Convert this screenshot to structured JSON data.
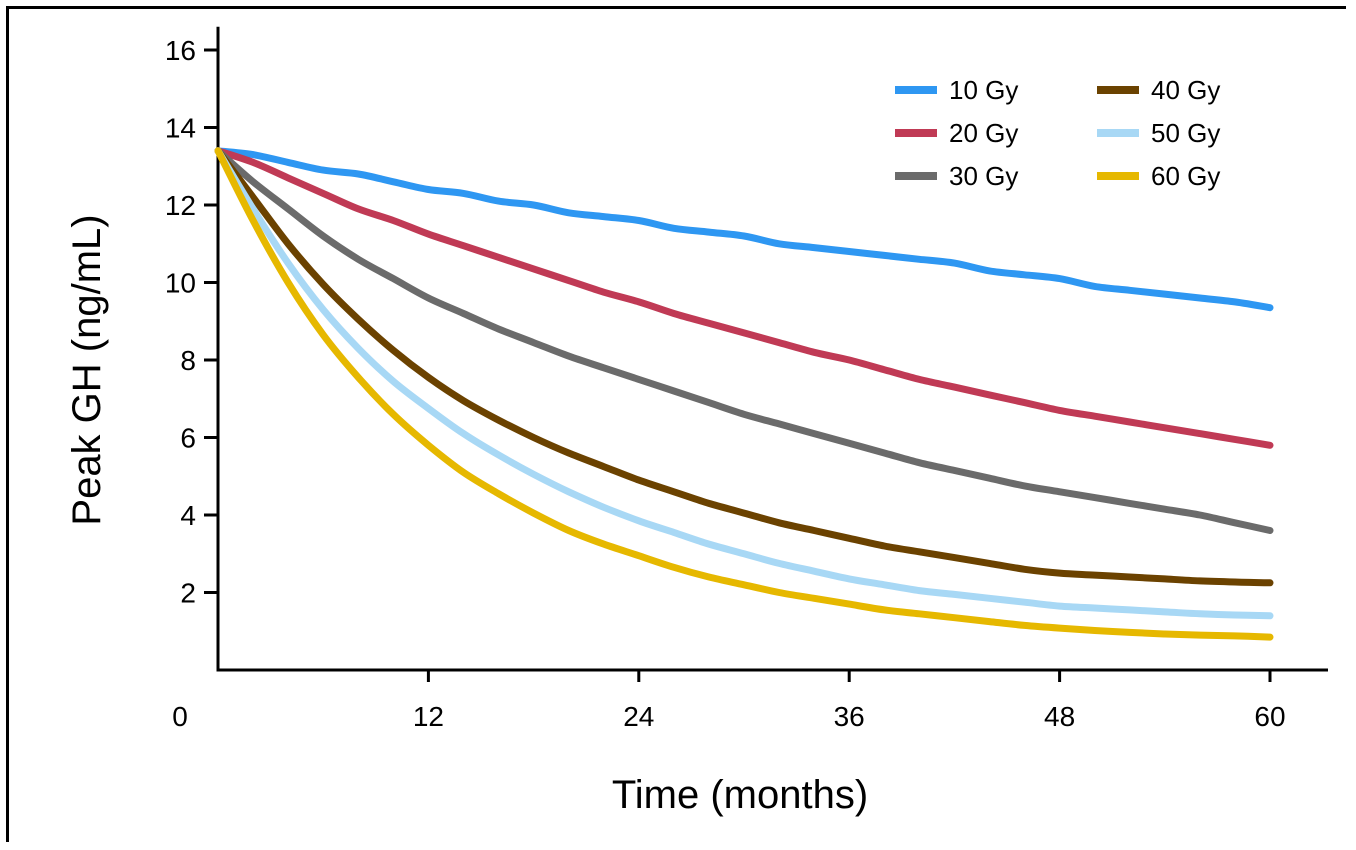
{
  "chart_data": {
    "type": "line",
    "title": "",
    "xlabel": "Time (months)",
    "ylabel": "Peak GH (ng/mL)",
    "xlim": [
      0,
      60
    ],
    "ylim": [
      0,
      16
    ],
    "xticks": [
      0,
      12,
      24,
      36,
      48,
      60
    ],
    "yticks": [
      2,
      4,
      6,
      8,
      10,
      12,
      14,
      16
    ],
    "grid": false,
    "legend_position": "top-right",
    "x": [
      0,
      2,
      4,
      6,
      8,
      10,
      12,
      14,
      16,
      18,
      20,
      22,
      24,
      26,
      28,
      30,
      32,
      34,
      36,
      38,
      40,
      42,
      44,
      46,
      48,
      50,
      52,
      54,
      56,
      58,
      60
    ],
    "series": [
      {
        "name": "10 Gy",
        "color": "#2E97F2",
        "values": [
          13.4,
          13.3,
          13.1,
          12.9,
          12.8,
          12.6,
          12.4,
          12.3,
          12.1,
          12.0,
          11.8,
          11.7,
          11.6,
          11.4,
          11.3,
          11.2,
          11.0,
          10.9,
          10.8,
          10.7,
          10.6,
          10.5,
          10.3,
          10.2,
          10.1,
          9.9,
          9.8,
          9.7,
          9.6,
          9.5,
          9.35
        ]
      },
      {
        "name": "20 Gy",
        "color": "#C03A55",
        "values": [
          13.4,
          13.1,
          12.7,
          12.3,
          11.9,
          11.6,
          11.25,
          10.95,
          10.65,
          10.35,
          10.05,
          9.75,
          9.5,
          9.2,
          8.95,
          8.7,
          8.45,
          8.2,
          8.0,
          7.75,
          7.5,
          7.3,
          7.1,
          6.9,
          6.7,
          6.55,
          6.4,
          6.25,
          6.1,
          5.95,
          5.8
        ]
      },
      {
        "name": "30 Gy",
        "color": "#6B6B6B",
        "values": [
          13.4,
          12.6,
          11.9,
          11.2,
          10.6,
          10.1,
          9.6,
          9.2,
          8.8,
          8.45,
          8.1,
          7.8,
          7.5,
          7.2,
          6.9,
          6.6,
          6.35,
          6.1,
          5.85,
          5.6,
          5.35,
          5.15,
          4.95,
          4.75,
          4.6,
          4.45,
          4.3,
          4.15,
          4.0,
          3.8,
          3.6
        ]
      },
      {
        "name": "40 Gy",
        "color": "#6B4200",
        "values": [
          13.4,
          12.2,
          11.0,
          9.95,
          9.05,
          8.25,
          7.55,
          6.95,
          6.45,
          6.0,
          5.6,
          5.25,
          4.9,
          4.6,
          4.3,
          4.05,
          3.8,
          3.6,
          3.4,
          3.2,
          3.05,
          2.9,
          2.75,
          2.6,
          2.5,
          2.45,
          2.4,
          2.35,
          2.3,
          2.27,
          2.25
        ]
      },
      {
        "name": "50 Gy",
        "color": "#A8D8F5",
        "values": [
          13.4,
          11.9,
          10.5,
          9.3,
          8.3,
          7.45,
          6.75,
          6.1,
          5.55,
          5.05,
          4.6,
          4.2,
          3.85,
          3.55,
          3.25,
          3.0,
          2.75,
          2.55,
          2.35,
          2.2,
          2.05,
          1.95,
          1.85,
          1.75,
          1.65,
          1.6,
          1.55,
          1.5,
          1.45,
          1.42,
          1.4
        ]
      },
      {
        "name": "60 Gy",
        "color": "#E6B800",
        "values": [
          13.4,
          11.6,
          10.0,
          8.65,
          7.55,
          6.6,
          5.8,
          5.1,
          4.55,
          4.05,
          3.6,
          3.25,
          2.95,
          2.65,
          2.4,
          2.2,
          2.0,
          1.85,
          1.7,
          1.55,
          1.45,
          1.35,
          1.25,
          1.15,
          1.08,
          1.02,
          0.97,
          0.93,
          0.9,
          0.88,
          0.85
        ]
      }
    ]
  }
}
